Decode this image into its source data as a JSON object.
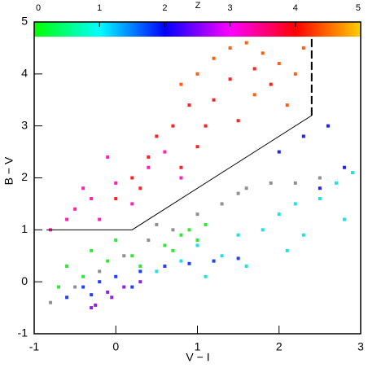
{
  "chart_data": {
    "type": "scatter",
    "x_label": "V − I",
    "y_label": "B − V",
    "xlim": [
      -1,
      3
    ],
    "ylim": [
      -1,
      5
    ],
    "xticks": [
      -1,
      0,
      1,
      2,
      3
    ],
    "yticks": [
      -1,
      0,
      1,
      2,
      3,
      4,
      5
    ],
    "colorbar": {
      "label": "Z",
      "zlim": [
        0,
        5
      ],
      "zticks": [
        0,
        1,
        2,
        3,
        4,
        5
      ],
      "colors": [
        "#00ff00",
        "#00ffff",
        "#0000ff",
        "#ff00ff",
        "#ff0000",
        "#ffd000"
      ]
    },
    "series": [
      {
        "style": "points",
        "color": "#909090",
        "x": [
          -0.8,
          -0.5,
          -0.2,
          0.1,
          0.4,
          0.7,
          1.0,
          1.3,
          1.6,
          1.9,
          2.2,
          2.5,
          0.5,
          1.5
        ],
        "values": [
          -0.4,
          -0.1,
          0.2,
          0.5,
          0.8,
          1.0,
          1.3,
          1.5,
          1.8,
          1.9,
          1.9,
          2.0,
          1.1,
          1.7
        ]
      },
      {
        "style": "points",
        "color": "#30e830",
        "x": [
          -0.6,
          -0.4,
          -0.3,
          -0.1,
          0.0,
          0.2,
          0.6,
          0.8,
          0.9,
          1.0,
          1.1,
          0.7,
          -0.7,
          0.3
        ],
        "values": [
          0.3,
          0.1,
          0.6,
          0.4,
          0.8,
          0.5,
          0.7,
          0.9,
          1.0,
          0.8,
          1.1,
          0.6,
          -0.1,
          0.3
        ]
      },
      {
        "style": "points",
        "color": "#20e0e0",
        "x": [
          0.5,
          0.8,
          1.0,
          1.3,
          1.5,
          1.8,
          2.0,
          2.2,
          2.5,
          2.7,
          2.9,
          2.3,
          1.6,
          1.1,
          2.8,
          2.1
        ],
        "values": [
          0.2,
          0.4,
          0.7,
          0.5,
          0.9,
          1.0,
          1.3,
          1.5,
          1.6,
          1.9,
          2.1,
          0.9,
          0.3,
          0.1,
          1.2,
          0.6
        ]
      },
      {
        "style": "points",
        "color": "#2040ff",
        "x": [
          -0.6,
          -0.4,
          -0.2,
          0.0,
          0.3,
          0.6,
          0.9,
          1.2,
          1.5,
          0.2,
          -0.3
        ],
        "values": [
          -0.3,
          -0.1,
          0.0,
          0.1,
          0.2,
          0.3,
          0.35,
          0.4,
          0.45,
          -0.1,
          -0.25
        ]
      },
      {
        "style": "points",
        "color": "#9020e0",
        "x": [
          -0.3,
          -0.25,
          -0.05,
          -0.1,
          0.1,
          0.3
        ],
        "values": [
          -0.5,
          -0.45,
          -0.3,
          -0.2,
          -0.1,
          0.0
        ]
      },
      {
        "style": "points",
        "color": "#ff20b0",
        "x": [
          -0.8,
          -0.6,
          -0.5,
          -0.3,
          -0.2,
          0.0,
          0.2,
          -0.1,
          0.4,
          0.6,
          0.8,
          -0.4
        ],
        "values": [
          1.0,
          1.2,
          1.4,
          1.6,
          1.2,
          1.9,
          1.5,
          2.4,
          2.2,
          2.5,
          2.0,
          1.8
        ]
      },
      {
        "style": "points",
        "color": "#ff2020",
        "x": [
          0.0,
          0.2,
          0.4,
          0.5,
          0.7,
          0.9,
          1.0,
          1.2,
          1.4,
          1.5,
          1.7,
          1.9,
          0.3,
          0.8,
          1.1
        ],
        "values": [
          1.6,
          2.0,
          2.4,
          2.8,
          3.0,
          3.4,
          2.6,
          3.5,
          3.9,
          3.1,
          4.1,
          3.8,
          1.8,
          2.2,
          3.0
        ]
      },
      {
        "style": "points",
        "color": "#ff6010",
        "x": [
          0.8,
          1.0,
          1.2,
          1.4,
          1.6,
          1.8,
          2.0,
          2.2,
          2.3,
          1.7,
          2.1
        ],
        "values": [
          3.8,
          4.0,
          4.3,
          4.5,
          4.6,
          4.4,
          4.2,
          4.0,
          4.5,
          3.6,
          3.4
        ]
      },
      {
        "style": "points",
        "color": "#2020ff",
        "x": [
          2.0,
          2.3,
          2.6,
          2.8,
          2.5
        ],
        "values": [
          2.5,
          2.8,
          3.0,
          2.2,
          1.8
        ]
      },
      {
        "style": "line",
        "color": "#000000",
        "x": [
          -0.85,
          0.2,
          2.4
        ],
        "values": [
          1,
          1,
          3.2
        ]
      },
      {
        "style": "dashed",
        "color": "#000000",
        "x": [
          2.4,
          2.4
        ],
        "values": [
          3.2,
          4.7
        ]
      }
    ]
  }
}
